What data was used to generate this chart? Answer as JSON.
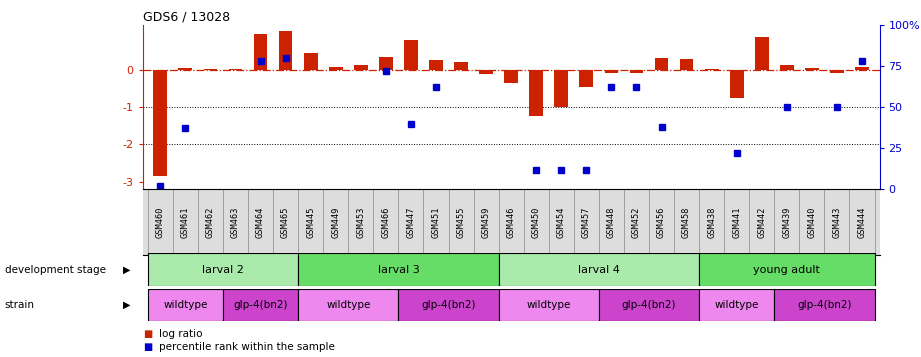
{
  "title": "GDS6 / 13028",
  "samples": [
    "GSM460",
    "GSM461",
    "GSM462",
    "GSM463",
    "GSM464",
    "GSM465",
    "GSM445",
    "GSM449",
    "GSM453",
    "GSM466",
    "GSM447",
    "GSM451",
    "GSM455",
    "GSM459",
    "GSM446",
    "GSM450",
    "GSM454",
    "GSM457",
    "GSM448",
    "GSM452",
    "GSM456",
    "GSM458",
    "GSM438",
    "GSM441",
    "GSM442",
    "GSM439",
    "GSM440",
    "GSM443",
    "GSM444"
  ],
  "log_ratio": [
    -2.85,
    0.05,
    0.02,
    0.02,
    0.95,
    1.05,
    0.45,
    0.08,
    0.12,
    0.35,
    0.8,
    0.25,
    0.22,
    -0.12,
    -0.35,
    -1.25,
    -1.0,
    -0.45,
    -0.08,
    -0.08,
    0.32,
    0.3,
    0.02,
    -0.75,
    0.88,
    0.12,
    0.05,
    -0.08,
    0.08
  ],
  "percentile": [
    2,
    37,
    0,
    0,
    78,
    80,
    0,
    0,
    0,
    72,
    40,
    62,
    0,
    0,
    0,
    12,
    12,
    12,
    62,
    62,
    38,
    0,
    0,
    22,
    0,
    50,
    0,
    50,
    78
  ],
  "dev_stage_groups": [
    {
      "label": "larval 2",
      "start": 0,
      "end": 5,
      "color": "#aaeaaa"
    },
    {
      "label": "larval 3",
      "start": 6,
      "end": 13,
      "color": "#66dd66"
    },
    {
      "label": "larval 4",
      "start": 14,
      "end": 21,
      "color": "#aaeaaa"
    },
    {
      "label": "young adult",
      "start": 22,
      "end": 28,
      "color": "#66dd66"
    }
  ],
  "strain_groups": [
    {
      "label": "wildtype",
      "start": 0,
      "end": 2,
      "color": "#ee88ee"
    },
    {
      "label": "glp-4(bn2)",
      "start": 3,
      "end": 5,
      "color": "#cc44cc"
    },
    {
      "label": "wildtype",
      "start": 6,
      "end": 9,
      "color": "#ee88ee"
    },
    {
      "label": "glp-4(bn2)",
      "start": 10,
      "end": 13,
      "color": "#cc44cc"
    },
    {
      "label": "wildtype",
      "start": 14,
      "end": 17,
      "color": "#ee88ee"
    },
    {
      "label": "glp-4(bn2)",
      "start": 18,
      "end": 21,
      "color": "#cc44cc"
    },
    {
      "label": "wildtype",
      "start": 22,
      "end": 24,
      "color": "#ee88ee"
    },
    {
      "label": "glp-4(bn2)",
      "start": 25,
      "end": 28,
      "color": "#cc44cc"
    }
  ],
  "ylim": [
    -3.2,
    1.2
  ],
  "bar_color": "#cc2200",
  "dot_color": "#0000cc",
  "dotted_lines": [
    -1,
    -2
  ],
  "bar_width": 0.55
}
